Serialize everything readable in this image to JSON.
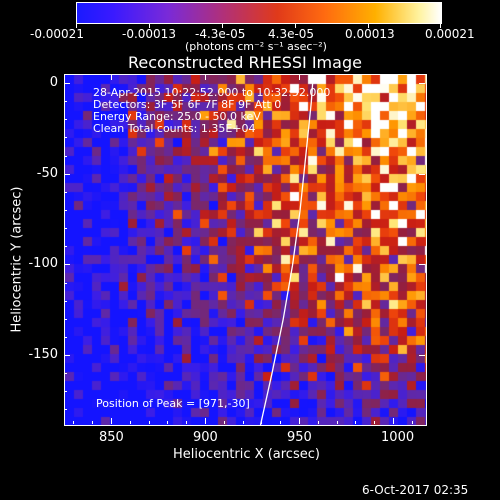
{
  "colorbar": {
    "tick_labels": [
      "-0.00021",
      "-0.00013",
      "-4.3e-05",
      "4.3e-05",
      "0.00013",
      "0.00021"
    ],
    "unit_label": "(photons cm⁻² s⁻¹ asec⁻²)"
  },
  "title": "Reconstructed RHESSI Image",
  "info": {
    "line1": "28-Apr-2015 10:22:52.000 to 10:32:52.000",
    "line2": "Detectors: 3F 5F 6F 7F 8F 9F Att 0",
    "line3": "Energy Range: 25.0 - 50.0 keV",
    "line4": "Clean     Total counts: 1.35E+04"
  },
  "peak_text": "Position of Peak = [971,-30]",
  "chart_data": {
    "type": "heatmap",
    "title": "Reconstructed RHESSI Image",
    "xlabel": "Heliocentric X (arcsec)",
    "ylabel": "Heliocentric Y (arcsec)",
    "xlim": [
      825,
      1017
    ],
    "ylim": [
      -188,
      5
    ],
    "x_ticks": [
      "850",
      "900",
      "950",
      "1000"
    ],
    "y_ticks": [
      "0",
      "-50",
      "-100",
      "-150"
    ],
    "colorbar_range": [
      -0.00021,
      0.00021
    ],
    "peak_position": [
      971,
      -30
    ],
    "limb_curve": [
      [
        929,
        -188
      ],
      [
        935,
        -160
      ],
      [
        941,
        -130
      ],
      [
        946,
        -100
      ],
      [
        950,
        -70
      ],
      [
        953,
        -40
      ],
      [
        956,
        -10
      ],
      [
        957,
        5
      ]
    ]
  },
  "timestamp": "6-Oct-2017 02:35"
}
